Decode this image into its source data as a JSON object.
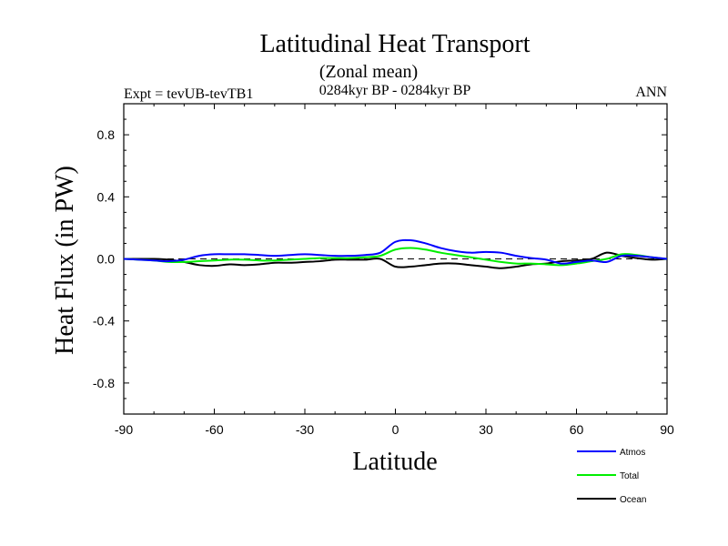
{
  "chart_data": {
    "type": "line",
    "title": "Latitudinal Heat Transport",
    "subtitle": "(Zonal mean)",
    "period": "0284kyr BP - 0284kyr BP",
    "expt": "Expt = tevUB-tevTB1",
    "season": "ANN",
    "xlabel": "Latitude",
    "ylabel": "Heat Flux (in PW)",
    "xlim": [
      -90,
      90
    ],
    "ylim": [
      -1.0,
      1.0
    ],
    "xticks": [
      -90,
      -60,
      -30,
      0,
      30,
      60,
      90
    ],
    "xtick_labels": [
      "-90",
      "-60",
      "-30",
      "0",
      "30",
      "60",
      "90"
    ],
    "yticks": [
      -0.8,
      -0.4,
      0.0,
      0.4,
      0.8
    ],
    "ytick_labels": [
      "-0.8",
      "-0.4",
      "0.0",
      "0.4",
      "0.8"
    ],
    "zero_line": "dashed",
    "grid": false,
    "legend_position": "bottom-right",
    "x": [
      -90,
      -85,
      -80,
      -75,
      -70,
      -65,
      -60,
      -55,
      -50,
      -45,
      -40,
      -35,
      -30,
      -25,
      -20,
      -15,
      -10,
      -5,
      0,
      5,
      10,
      15,
      20,
      25,
      30,
      35,
      40,
      45,
      50,
      55,
      60,
      65,
      70,
      75,
      80,
      85,
      90
    ],
    "series": [
      {
        "name": "Atmos",
        "color": "#0000ff",
        "values": [
          0.0,
          -0.005,
          -0.01,
          -0.015,
          -0.005,
          0.02,
          0.03,
          0.03,
          0.03,
          0.025,
          0.02,
          0.025,
          0.03,
          0.025,
          0.02,
          0.02,
          0.025,
          0.04,
          0.11,
          0.12,
          0.1,
          0.07,
          0.05,
          0.04,
          0.045,
          0.04,
          0.02,
          0.005,
          -0.005,
          -0.03,
          -0.02,
          -0.01,
          -0.02,
          0.02,
          0.02,
          0.01,
          0.0
        ]
      },
      {
        "name": "Total",
        "color": "#00ee00",
        "values": [
          0.0,
          -0.005,
          -0.01,
          -0.02,
          -0.02,
          -0.015,
          -0.01,
          -0.005,
          -0.005,
          -0.01,
          -0.01,
          -0.005,
          0.0,
          0.005,
          0.005,
          0.005,
          0.01,
          0.02,
          0.06,
          0.07,
          0.06,
          0.04,
          0.025,
          0.01,
          -0.005,
          -0.02,
          -0.03,
          -0.03,
          -0.035,
          -0.04,
          -0.03,
          -0.015,
          0.0,
          0.03,
          0.025,
          0.01,
          0.0
        ]
      },
      {
        "name": "Ocean",
        "color": "#000000",
        "values": [
          0.0,
          0.0,
          0.0,
          -0.005,
          -0.02,
          -0.04,
          -0.045,
          -0.035,
          -0.04,
          -0.035,
          -0.025,
          -0.025,
          -0.02,
          -0.015,
          -0.005,
          -0.005,
          -0.005,
          0.0,
          -0.05,
          -0.05,
          -0.04,
          -0.03,
          -0.03,
          -0.04,
          -0.05,
          -0.06,
          -0.05,
          -0.035,
          -0.03,
          -0.015,
          -0.01,
          0.0,
          0.04,
          0.02,
          0.005,
          -0.005,
          0.0
        ]
      }
    ]
  }
}
